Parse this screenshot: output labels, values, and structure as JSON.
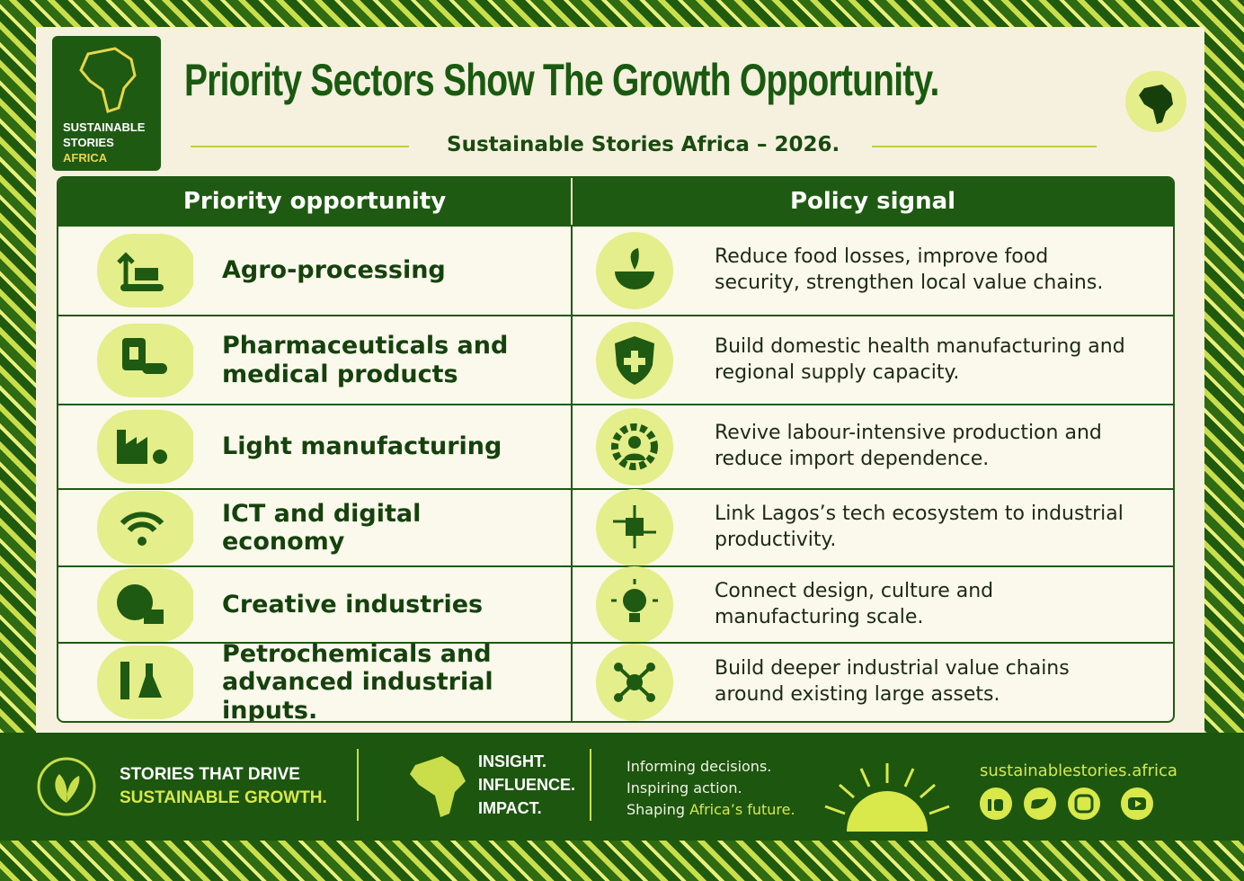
{
  "header": {
    "logo": [
      "SUSTAINABLE",
      "STORIES",
      "AFRICA"
    ],
    "title": "Priority Sectors Show The Growth Opportunity.",
    "subtitle": "Sustainable Stories Africa – 2026."
  },
  "table": {
    "headers": [
      "Priority opportunity",
      "Policy signal"
    ],
    "rows": [
      [
        "Agro-processing",
        "Reduce food losses, improve food security, strengthen local value chains."
      ],
      [
        "Pharmaceuticals and medical products",
        "Build domestic health manufacturing and regional supply capacity."
      ],
      [
        "Light manufacturing",
        "Revive labour-intensive production and reduce import dependence."
      ],
      [
        "ICT and digital economy",
        "Link Lagos’s tech ecosystem to industrial productivity."
      ],
      [
        "Creative industries",
        "Connect design, culture and manufacturing scale."
      ],
      [
        "Petrochemicals and advanced industrial inputs.",
        "Build deeper industrial value chains around existing large assets."
      ]
    ]
  },
  "footer": {
    "tagline": [
      "STORIES THAT DRIVE",
      "SUSTAINABLE GROWTH."
    ],
    "pillars": [
      "INSIGHT.",
      "INFLUENCE.",
      "IMPACT."
    ],
    "mission": [
      "Informing decisions.",
      "Inspiring action.",
      "Shaping",
      "Africa’s future."
    ],
    "website": "sustainablestories.africa"
  }
}
